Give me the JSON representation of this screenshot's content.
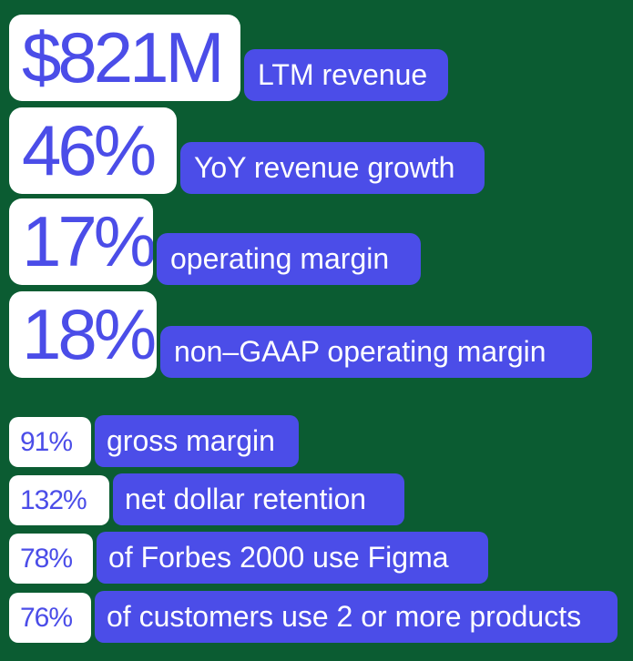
{
  "colors": {
    "background": "#0b5c32",
    "number_box": "#ffffff",
    "number_text": "#4b4de8",
    "label_box": "#4b4de8",
    "label_text": "#ffffff"
  },
  "major_stats": [
    {
      "value": "$821M",
      "label": "LTM revenue"
    },
    {
      "value": "46%",
      "label": "YoY revenue growth"
    },
    {
      "value": "17%",
      "label": "operating margin"
    },
    {
      "value": "18%",
      "label": "non–GAAP operating margin"
    }
  ],
  "minor_stats": [
    {
      "value": "91%",
      "label": "gross margin"
    },
    {
      "value": "132%",
      "label": "net dollar retention"
    },
    {
      "value": "78%",
      "label": "of Forbes 2000 use Figma"
    },
    {
      "value": "76%",
      "label": "of customers use 2 or more products"
    }
  ]
}
